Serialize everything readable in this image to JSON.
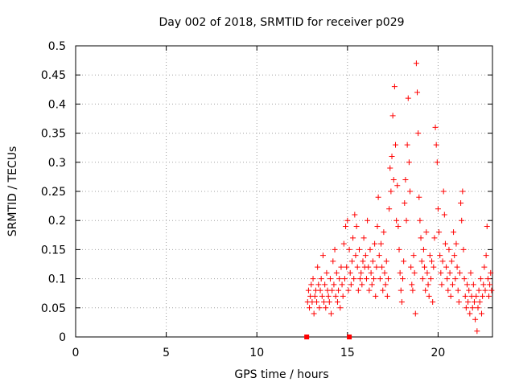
{
  "chart_data": {
    "type": "scatter",
    "title": "Day 002 of 2018, SRMTID for receiver p029",
    "xlabel": "GPS time / hours",
    "ylabel": "SRMTID / TECUs",
    "xlim": [
      0,
      23
    ],
    "ylim": [
      0,
      0.5
    ],
    "x_ticks": [
      0,
      5,
      10,
      15,
      20
    ],
    "y_ticks": [
      0,
      0.05,
      0.1,
      0.15,
      0.2,
      0.25,
      0.3,
      0.35,
      0.4,
      0.45,
      0.5
    ],
    "y_tick_labels": [
      "0",
      "0.05",
      "0.1",
      "0.15",
      "0.2",
      "0.25",
      "0.3",
      "0.35",
      "0.4",
      "0.45",
      "0.5"
    ],
    "grid": true,
    "marker_color": "#ff0000",
    "zero_markers": [
      12.75,
      15.1
    ],
    "series": [
      {
        "name": "SRMTID",
        "marker": "+",
        "points": [
          [
            12.8,
            0.06
          ],
          [
            12.85,
            0.08
          ],
          [
            12.9,
            0.05
          ],
          [
            12.95,
            0.07
          ],
          [
            13.0,
            0.09
          ],
          [
            13.05,
            0.06
          ],
          [
            13.1,
            0.1
          ],
          [
            13.15,
            0.04
          ],
          [
            13.2,
            0.07
          ],
          [
            13.25,
            0.08
          ],
          [
            13.3,
            0.06
          ],
          [
            13.35,
            0.12
          ],
          [
            13.4,
            0.09
          ],
          [
            13.45,
            0.05
          ],
          [
            13.5,
            0.08
          ],
          [
            13.55,
            0.1
          ],
          [
            13.6,
            0.07
          ],
          [
            13.65,
            0.14
          ],
          [
            13.7,
            0.06
          ],
          [
            13.75,
            0.09
          ],
          [
            13.8,
            0.05
          ],
          [
            13.85,
            0.11
          ],
          [
            13.9,
            0.08
          ],
          [
            13.95,
            0.07
          ],
          [
            14.0,
            0.06
          ],
          [
            14.05,
            0.1
          ],
          [
            14.1,
            0.04
          ],
          [
            14.15,
            0.08
          ],
          [
            14.2,
            0.13
          ],
          [
            14.25,
            0.09
          ],
          [
            14.3,
            0.15
          ],
          [
            14.35,
            0.07
          ],
          [
            14.4,
            0.11
          ],
          [
            14.45,
            0.06
          ],
          [
            14.5,
            0.08
          ],
          [
            14.55,
            0.1
          ],
          [
            14.6,
            0.05
          ],
          [
            14.65,
            0.12
          ],
          [
            14.7,
            0.09
          ],
          [
            14.75,
            0.07
          ],
          [
            14.8,
            0.16
          ],
          [
            14.85,
            0.1
          ],
          [
            14.9,
            0.19
          ],
          [
            14.95,
            0.12
          ],
          [
            15.0,
            0.2
          ],
          [
            15.05,
            0.08
          ],
          [
            15.1,
            0.15
          ],
          [
            15.15,
            0.11
          ],
          [
            15.2,
            0.09
          ],
          [
            15.25,
            0.13
          ],
          [
            15.3,
            0.17
          ],
          [
            15.35,
            0.1
          ],
          [
            15.4,
            0.21
          ],
          [
            15.45,
            0.14
          ],
          [
            15.5,
            0.19
          ],
          [
            15.55,
            0.12
          ],
          [
            15.6,
            0.08
          ],
          [
            15.65,
            0.15
          ],
          [
            15.7,
            0.1
          ],
          [
            15.75,
            0.11
          ],
          [
            15.8,
            0.09
          ],
          [
            15.85,
            0.13
          ],
          [
            15.9,
            0.17
          ],
          [
            15.95,
            0.12
          ],
          [
            16.0,
            0.14
          ],
          [
            16.05,
            0.1
          ],
          [
            16.1,
            0.2
          ],
          [
            16.15,
            0.12
          ],
          [
            16.2,
            0.08
          ],
          [
            16.25,
            0.15
          ],
          [
            16.3,
            0.11
          ],
          [
            16.35,
            0.09
          ],
          [
            16.4,
            0.13
          ],
          [
            16.45,
            0.1
          ],
          [
            16.5,
            0.16
          ],
          [
            16.55,
            0.07
          ],
          [
            16.6,
            0.12
          ],
          [
            16.65,
            0.19
          ],
          [
            16.7,
            0.24
          ],
          [
            16.75,
            0.14
          ],
          [
            16.8,
            0.1
          ],
          [
            16.85,
            0.16
          ],
          [
            16.9,
            0.12
          ],
          [
            16.95,
            0.08
          ],
          [
            17.0,
            0.18
          ],
          [
            17.05,
            0.11
          ],
          [
            17.1,
            0.09
          ],
          [
            17.15,
            0.13
          ],
          [
            17.2,
            0.07
          ],
          [
            17.25,
            0.1
          ],
          [
            17.3,
            0.22
          ],
          [
            17.35,
            0.29
          ],
          [
            17.4,
            0.25
          ],
          [
            17.45,
            0.31
          ],
          [
            17.5,
            0.38
          ],
          [
            17.55,
            0.27
          ],
          [
            17.6,
            0.43
          ],
          [
            17.65,
            0.33
          ],
          [
            17.7,
            0.2
          ],
          [
            17.75,
            0.26
          ],
          [
            17.8,
            0.19
          ],
          [
            17.85,
            0.15
          ],
          [
            17.9,
            0.11
          ],
          [
            17.95,
            0.08
          ],
          [
            18.0,
            0.06
          ],
          [
            18.05,
            0.1
          ],
          [
            18.1,
            0.13
          ],
          [
            18.15,
            0.23
          ],
          [
            18.2,
            0.27
          ],
          [
            18.25,
            0.2
          ],
          [
            18.3,
            0.33
          ],
          [
            18.35,
            0.41
          ],
          [
            18.4,
            0.3
          ],
          [
            18.45,
            0.25
          ],
          [
            18.5,
            0.12
          ],
          [
            18.55,
            0.09
          ],
          [
            18.6,
            0.08
          ],
          [
            18.65,
            0.14
          ],
          [
            18.7,
            0.11
          ],
          [
            18.75,
            0.04
          ],
          [
            18.8,
            0.47
          ],
          [
            18.85,
            0.42
          ],
          [
            18.9,
            0.35
          ],
          [
            18.95,
            0.24
          ],
          [
            19.0,
            0.2
          ],
          [
            19.05,
            0.17
          ],
          [
            19.1,
            0.13
          ],
          [
            19.15,
            0.1
          ],
          [
            19.2,
            0.15
          ],
          [
            19.25,
            0.12
          ],
          [
            19.3,
            0.08
          ],
          [
            19.35,
            0.18
          ],
          [
            19.4,
            0.11
          ],
          [
            19.45,
            0.09
          ],
          [
            19.5,
            0.07
          ],
          [
            19.55,
            0.14
          ],
          [
            19.6,
            0.1
          ],
          [
            19.65,
            0.13
          ],
          [
            19.7,
            0.06
          ],
          [
            19.75,
            0.12
          ],
          [
            19.8,
            0.17
          ],
          [
            19.85,
            0.36
          ],
          [
            19.9,
            0.33
          ],
          [
            19.95,
            0.3
          ],
          [
            20.0,
            0.22
          ],
          [
            20.05,
            0.18
          ],
          [
            20.1,
            0.14
          ],
          [
            20.15,
            0.11
          ],
          [
            20.2,
            0.09
          ],
          [
            20.25,
            0.13
          ],
          [
            20.3,
            0.25
          ],
          [
            20.35,
            0.21
          ],
          [
            20.4,
            0.16
          ],
          [
            20.45,
            0.12
          ],
          [
            20.5,
            0.1
          ],
          [
            20.55,
            0.08
          ],
          [
            20.6,
            0.15
          ],
          [
            20.65,
            0.11
          ],
          [
            20.7,
            0.07
          ],
          [
            20.75,
            0.13
          ],
          [
            20.8,
            0.09
          ],
          [
            20.85,
            0.18
          ],
          [
            20.9,
            0.14
          ],
          [
            20.95,
            0.1
          ],
          [
            21.0,
            0.16
          ],
          [
            21.05,
            0.12
          ],
          [
            21.1,
            0.08
          ],
          [
            21.15,
            0.06
          ],
          [
            21.2,
            0.11
          ],
          [
            21.25,
            0.23
          ],
          [
            21.3,
            0.2
          ],
          [
            21.35,
            0.25
          ],
          [
            21.4,
            0.15
          ],
          [
            21.45,
            0.1
          ],
          [
            21.5,
            0.07
          ],
          [
            21.55,
            0.05
          ],
          [
            21.6,
            0.09
          ],
          [
            21.65,
            0.06
          ],
          [
            21.7,
            0.08
          ],
          [
            21.75,
            0.04
          ],
          [
            21.8,
            0.11
          ],
          [
            21.85,
            0.07
          ],
          [
            21.9,
            0.05
          ],
          [
            21.95,
            0.09
          ],
          [
            22.0,
            0.06
          ],
          [
            22.05,
            0.03
          ],
          [
            22.1,
            0.07
          ],
          [
            22.15,
            0.01
          ],
          [
            22.2,
            0.05
          ],
          [
            22.25,
            0.08
          ],
          [
            22.3,
            0.06
          ],
          [
            22.35,
            0.1
          ],
          [
            22.4,
            0.04
          ],
          [
            22.45,
            0.07
          ],
          [
            22.5,
            0.09
          ],
          [
            22.55,
            0.12
          ],
          [
            22.6,
            0.08
          ],
          [
            22.65,
            0.14
          ],
          [
            22.7,
            0.19
          ],
          [
            22.75,
            0.1
          ],
          [
            22.8,
            0.07
          ],
          [
            22.85,
            0.09
          ],
          [
            22.9,
            0.11
          ],
          [
            22.95,
            0.08
          ]
        ]
      }
    ]
  }
}
